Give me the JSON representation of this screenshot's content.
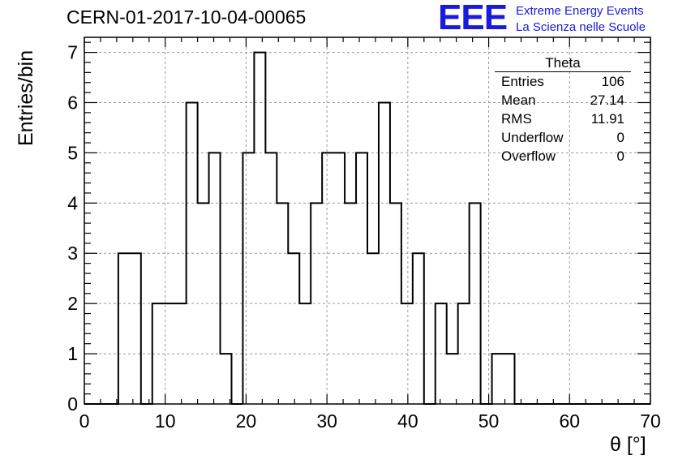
{
  "chart_data": {
    "type": "bar",
    "title": "CERN-01-2017-10-04-00065",
    "xlabel": "θ [°]",
    "ylabel": "Entries/bin",
    "xlim": [
      0,
      70
    ],
    "ylim": [
      0,
      7.3
    ],
    "grid": true,
    "bin_width": 1.4,
    "x_ticks": [
      0,
      10,
      20,
      30,
      40,
      50,
      60,
      70
    ],
    "y_ticks": [
      0,
      1,
      2,
      3,
      4,
      5,
      6,
      7
    ],
    "bin_edges": [
      0,
      1.4,
      2.8,
      4.2,
      5.6,
      7,
      8.4,
      9.8,
      11.2,
      12.6,
      14,
      15.4,
      16.8,
      18.2,
      19.6,
      21,
      22.4,
      23.8,
      25.2,
      26.6,
      28,
      29.4,
      30.8,
      32.2,
      33.6,
      35,
      36.4,
      37.8,
      39.2,
      40.6,
      42,
      43.4,
      44.8,
      46.2,
      47.6,
      49,
      50.4,
      51.8,
      53.2,
      54.6,
      56,
      57.4,
      58.8,
      60.2,
      61.6,
      63,
      64.4,
      65.8,
      67.2,
      68.6,
      70
    ],
    "values": [
      0,
      0,
      0,
      3,
      3,
      0,
      2,
      2,
      2,
      6,
      4,
      5,
      1,
      0,
      5,
      7,
      5,
      4,
      3,
      2,
      4,
      5,
      5,
      4,
      5,
      3,
      6,
      4,
      2,
      3,
      0,
      2,
      1,
      2,
      4,
      0,
      1,
      1,
      0,
      0,
      0,
      0,
      0,
      0,
      0,
      0,
      0,
      0,
      0,
      0
    ],
    "stats_box": {
      "title": "Theta",
      "rows": [
        {
          "label": "Entries",
          "value": "106"
        },
        {
          "label": "Mean",
          "value": "27.14"
        },
        {
          "label": "RMS",
          "value": "11.91"
        },
        {
          "label": "Underflow",
          "value": "0"
        },
        {
          "label": "Overflow",
          "value": "0"
        }
      ]
    }
  },
  "logo": {
    "mark": "EEE",
    "line1": "Extreme Energy Events",
    "line2": "La Scienza nelle Scuole",
    "color": "#1a1adc"
  }
}
